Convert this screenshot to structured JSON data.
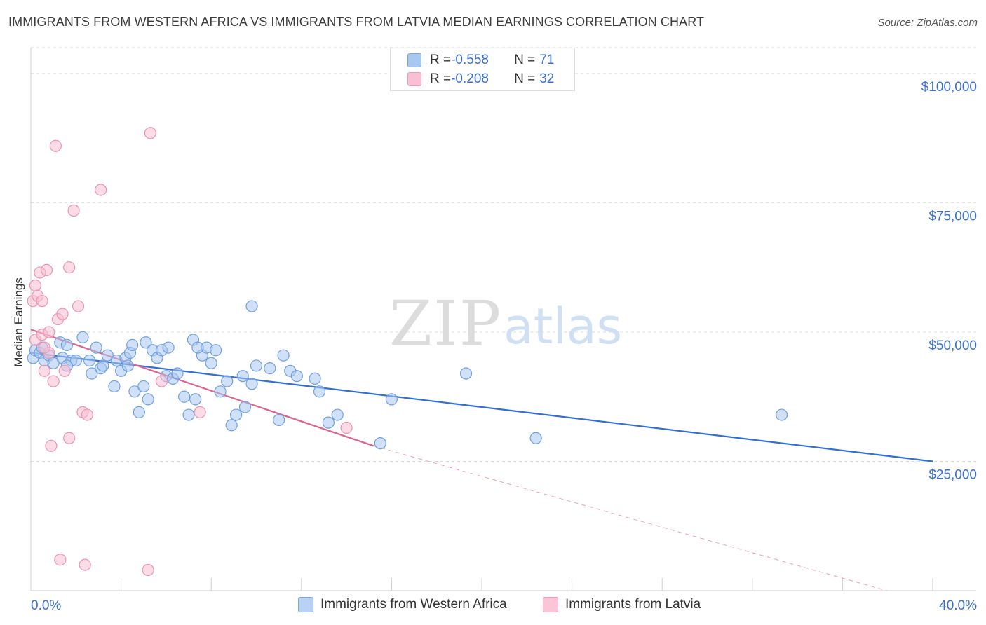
{
  "title": "IMMIGRANTS FROM WESTERN AFRICA VS IMMIGRANTS FROM LATVIA MEDIAN EARNINGS CORRELATION CHART",
  "source": "Source: ZipAtlas.com",
  "watermark": {
    "zip": "ZIP",
    "atlas": "atlas"
  },
  "legend_top": [
    {
      "r_label": "R = ",
      "r_value": "-0.558",
      "n_label": "N = ",
      "n_value": "71",
      "color": "#a9c8f0",
      "stroke": "#7aa6e0"
    },
    {
      "r_label": "R = ",
      "r_value": "-0.208",
      "n_label": "N = ",
      "n_value": "32",
      "color": "#f8c0d2",
      "stroke": "#ee9db8"
    }
  ],
  "legend_bottom": [
    {
      "label": "Immigrants from Western Africa",
      "color": "#b9d2f3",
      "stroke": "#7aa6e0"
    },
    {
      "label": "Immigrants from Latvia",
      "color": "#f9c6d6",
      "stroke": "#ee9db8"
    }
  ],
  "chart_data": {
    "type": "scatter",
    "title": "IMMIGRANTS FROM WESTERN AFRICA VS IMMIGRANTS FROM LATVIA MEDIAN EARNINGS CORRELATION CHART",
    "xlabel": "",
    "ylabel": "Median Earnings",
    "xlim": [
      0,
      40
    ],
    "ylim": [
      0,
      105000
    ],
    "x_tick_labels": [
      "0.0%",
      "40.0%"
    ],
    "y_ticks": [
      25000,
      50000,
      75000,
      100000
    ],
    "y_tick_labels": [
      "$25,000",
      "$50,000",
      "$75,000",
      "$100,000"
    ],
    "grid": true,
    "series": [
      {
        "name": "Immigrants from Western Africa",
        "color": "#a9c8f0",
        "stroke": "#6f9fe0",
        "trend_color": "#2f6fd6",
        "trend": {
          "x": [
            0,
            40
          ],
          "y": [
            46000,
            25000
          ]
        },
        "points": [
          [
            0.1,
            45000
          ],
          [
            0.2,
            46500
          ],
          [
            0.4,
            46000
          ],
          [
            0.5,
            47000
          ],
          [
            0.6,
            44500
          ],
          [
            0.8,
            45500
          ],
          [
            1.0,
            44000
          ],
          [
            1.3,
            48000
          ],
          [
            1.4,
            45000
          ],
          [
            1.6,
            47500
          ],
          [
            1.8,
            44500
          ],
          [
            2.0,
            44500
          ],
          [
            2.3,
            49000
          ],
          [
            2.6,
            44500
          ],
          [
            2.7,
            42000
          ],
          [
            2.9,
            47000
          ],
          [
            3.1,
            43000
          ],
          [
            3.2,
            43500
          ],
          [
            3.4,
            45500
          ],
          [
            3.7,
            39500
          ],
          [
            3.8,
            44500
          ],
          [
            4.0,
            42500
          ],
          [
            4.2,
            45000
          ],
          [
            4.3,
            43500
          ],
          [
            4.4,
            46000
          ],
          [
            4.5,
            47500
          ],
          [
            4.6,
            38500
          ],
          [
            4.8,
            34500
          ],
          [
            5.0,
            39500
          ],
          [
            5.1,
            48000
          ],
          [
            5.2,
            37000
          ],
          [
            5.4,
            46500
          ],
          [
            5.6,
            45000
          ],
          [
            5.8,
            46500
          ],
          [
            6.0,
            41500
          ],
          [
            6.1,
            47000
          ],
          [
            6.3,
            41000
          ],
          [
            6.5,
            42000
          ],
          [
            6.8,
            37500
          ],
          [
            7.0,
            34000
          ],
          [
            7.2,
            48500
          ],
          [
            7.3,
            37000
          ],
          [
            7.6,
            45500
          ],
          [
            7.8,
            47000
          ],
          [
            8.0,
            44000
          ],
          [
            8.2,
            46500
          ],
          [
            8.4,
            38500
          ],
          [
            8.7,
            40500
          ],
          [
            8.9,
            32000
          ],
          [
            9.1,
            34000
          ],
          [
            9.4,
            41500
          ],
          [
            9.5,
            35500
          ],
          [
            9.8,
            40000
          ],
          [
            10.0,
            43500
          ],
          [
            10.6,
            43000
          ],
          [
            11.0,
            33000
          ],
          [
            11.2,
            45500
          ],
          [
            11.5,
            42500
          ],
          [
            11.8,
            41500
          ],
          [
            12.6,
            41000
          ],
          [
            12.8,
            38500
          ],
          [
            13.2,
            32500
          ],
          [
            13.6,
            34000
          ],
          [
            15.5,
            28500
          ],
          [
            16.0,
            37000
          ],
          [
            19.3,
            42000
          ],
          [
            22.4,
            29500
          ],
          [
            33.3,
            34000
          ],
          [
            1.6,
            43500
          ],
          [
            7.4,
            47000
          ],
          [
            9.8,
            55000
          ]
        ]
      },
      {
        "name": "Immigrants from Latvia",
        "color": "#f8c0d2",
        "stroke": "#ea94b2",
        "trend_color": "#e0608e",
        "trend": {
          "x": [
            0,
            15.2
          ],
          "y": [
            50500,
            28000
          ]
        },
        "trend_dashed": {
          "x": [
            15.2,
            40
          ],
          "y": [
            28000,
            -2500
          ]
        },
        "points": [
          [
            0.1,
            56000
          ],
          [
            0.2,
            48500
          ],
          [
            0.2,
            59000
          ],
          [
            0.3,
            57000
          ],
          [
            0.4,
            61500
          ],
          [
            0.5,
            56000
          ],
          [
            0.5,
            49500
          ],
          [
            0.6,
            42500
          ],
          [
            0.7,
            62000
          ],
          [
            0.8,
            50000
          ],
          [
            0.9,
            28000
          ],
          [
            1.0,
            40500
          ],
          [
            1.1,
            86000
          ],
          [
            1.2,
            52500
          ],
          [
            1.3,
            6000
          ],
          [
            1.4,
            53500
          ],
          [
            1.5,
            42500
          ],
          [
            1.7,
            29500
          ],
          [
            1.7,
            62500
          ],
          [
            1.9,
            73500
          ],
          [
            2.1,
            55000
          ],
          [
            2.3,
            34500
          ],
          [
            2.4,
            5000
          ],
          [
            2.5,
            34000
          ],
          [
            3.1,
            77500
          ],
          [
            5.2,
            4000
          ],
          [
            5.3,
            88500
          ],
          [
            5.8,
            40500
          ],
          [
            7.5,
            34500
          ],
          [
            14.0,
            31500
          ],
          [
            0.8,
            46000
          ],
          [
            0.6,
            47000
          ]
        ]
      }
    ]
  }
}
